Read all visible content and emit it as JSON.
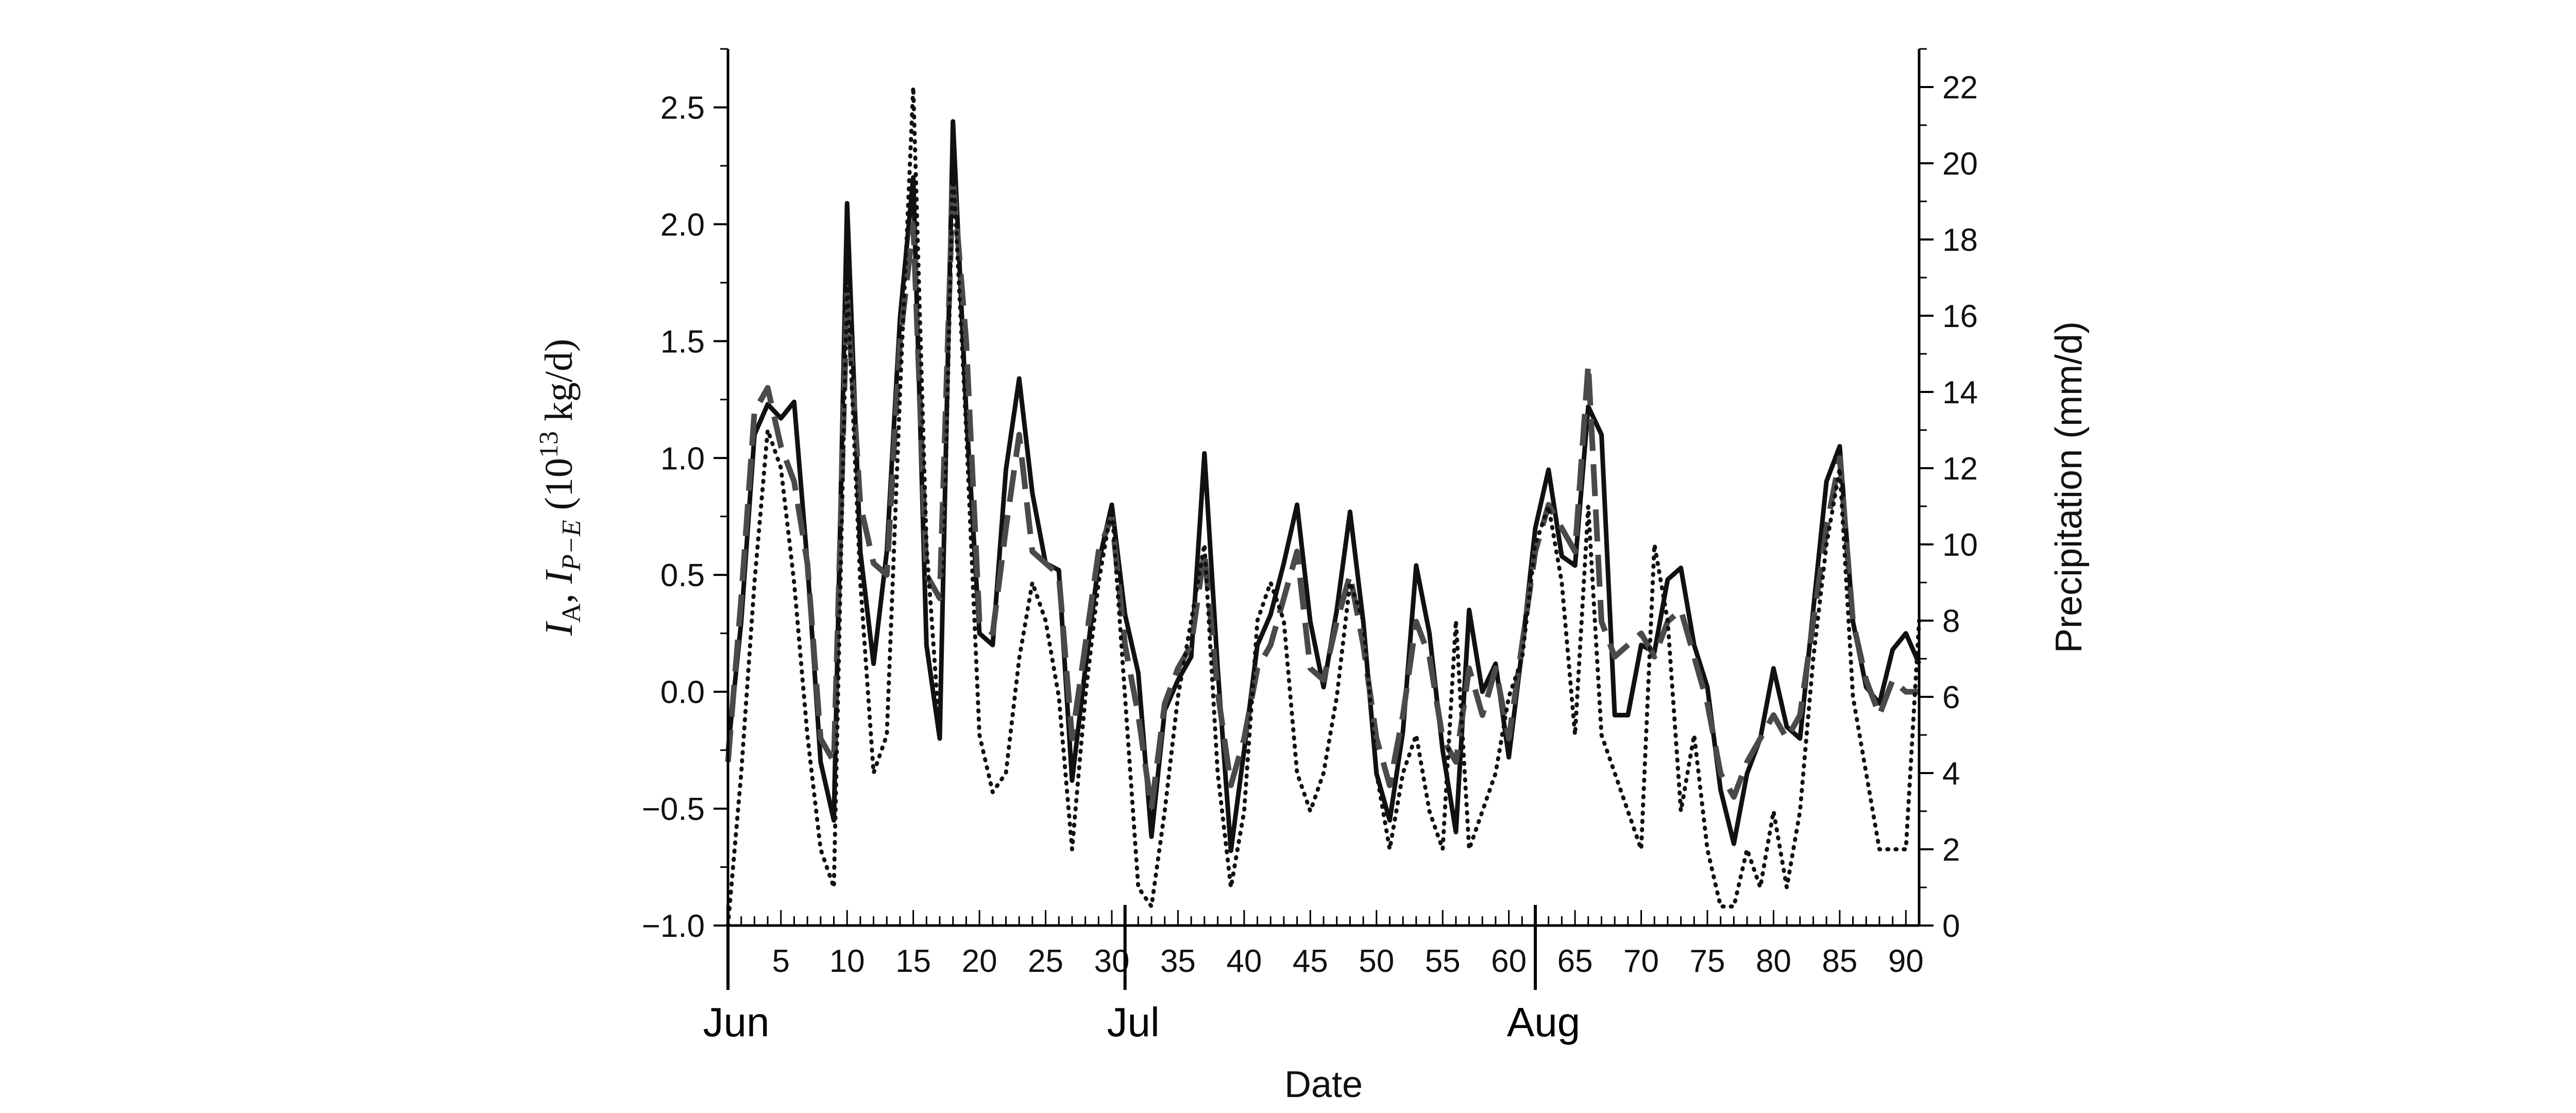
{
  "chart_data": {
    "type": "line",
    "xlabel": "Date",
    "ylabel_left": "I_A, I_{P-E} (10^13 kg/d)",
    "ylabel_right": "Precipitation (mm/d)",
    "xlim": [
      1,
      91
    ],
    "ylim_left": [
      -1.0,
      2.75
    ],
    "ylim_right": [
      0,
      23
    ],
    "x_ticks": [
      5,
      10,
      15,
      20,
      25,
      30,
      35,
      40,
      45,
      50,
      55,
      60,
      65,
      70,
      75,
      80,
      85,
      90
    ],
    "x_tick_labels": [
      "5",
      "10",
      "15",
      "20",
      "25",
      "30",
      "35",
      "40",
      "45",
      "50",
      "55",
      "60",
      "65",
      "70",
      "75",
      "80",
      "85",
      "90"
    ],
    "y_left_ticks": [
      -1.0,
      -0.5,
      0.0,
      0.5,
      1.0,
      1.5,
      2.0,
      2.5
    ],
    "y_left_tick_labels": [
      "−1.0",
      "−0.5",
      "0.0",
      "0.5",
      "1.0",
      "1.5",
      "2.0",
      "2.5"
    ],
    "y_right_ticks": [
      0,
      2,
      4,
      6,
      8,
      10,
      12,
      14,
      16,
      18,
      20,
      22
    ],
    "y_right_tick_labels": [
      "0",
      "2",
      "4",
      "6",
      "8",
      "10",
      "12",
      "14",
      "16",
      "18",
      "20",
      "22"
    ],
    "months": [
      {
        "label": "Jun",
        "x": 1
      },
      {
        "label": "Jul",
        "x": 31
      },
      {
        "label": "Aug",
        "x": 62
      }
    ],
    "grid": false,
    "legend": "none",
    "series": [
      {
        "style": "solid",
        "axis": "left",
        "x": [
          1,
          2,
          3,
          4,
          5,
          6,
          7,
          8,
          9,
          10,
          11,
          12,
          13,
          14,
          15,
          16,
          17,
          18,
          19,
          20,
          21,
          22,
          23,
          24,
          25,
          26,
          27,
          28,
          29,
          30,
          31,
          32,
          33,
          34,
          35,
          36,
          37,
          38,
          39,
          40,
          41,
          42,
          43,
          44,
          45,
          46,
          47,
          48,
          49,
          50,
          51,
          52,
          53,
          54,
          55,
          56,
          57,
          58,
          59,
          60,
          61,
          62,
          63,
          64,
          65,
          66,
          67,
          68,
          69,
          70,
          71,
          72,
          73,
          74,
          75,
          76,
          77,
          78,
          79,
          80,
          81,
          82,
          83,
          84,
          85,
          86,
          87,
          88,
          89,
          90,
          91
        ],
        "y": [
          -0.25,
          0.3,
          1.1,
          1.23,
          1.17,
          1.24,
          0.55,
          -0.3,
          -0.55,
          2.09,
          0.6,
          0.12,
          0.6,
          1.6,
          2.2,
          0.2,
          -0.2,
          2.44,
          1.2,
          0.25,
          0.2,
          0.95,
          1.34,
          0.85,
          0.55,
          0.52,
          -0.38,
          0.1,
          0.55,
          0.8,
          0.33,
          0.08,
          -0.62,
          -0.08,
          0.05,
          0.15,
          1.02,
          0.1,
          -0.68,
          -0.25,
          0.2,
          0.33,
          0.55,
          0.8,
          0.3,
          0.02,
          0.35,
          0.77,
          0.3,
          -0.35,
          -0.55,
          -0.17,
          0.54,
          0.25,
          -0.25,
          -0.6,
          0.35,
          0.0,
          0.12,
          -0.28,
          0.18,
          0.7,
          0.95,
          0.58,
          0.54,
          1.22,
          1.1,
          -0.1,
          -0.1,
          0.2,
          0.17,
          0.48,
          0.53,
          0.2,
          0.02,
          -0.42,
          -0.65,
          -0.35,
          -0.2,
          0.1,
          -0.15,
          -0.2,
          0.35,
          0.9,
          1.05,
          0.3,
          0.02,
          -0.05,
          0.18,
          0.25,
          0.12
        ]
      },
      {
        "style": "dashed",
        "axis": "left",
        "x": [
          1,
          2,
          3,
          4,
          5,
          6,
          7,
          8,
          9,
          10,
          11,
          12,
          13,
          14,
          15,
          16,
          17,
          18,
          19,
          20,
          21,
          22,
          23,
          24,
          25,
          26,
          27,
          28,
          29,
          30,
          31,
          32,
          33,
          34,
          35,
          36,
          37,
          38,
          39,
          40,
          41,
          42,
          43,
          44,
          45,
          46,
          47,
          48,
          49,
          50,
          51,
          52,
          53,
          54,
          55,
          56,
          57,
          58,
          59,
          60,
          61,
          62,
          63,
          64,
          65,
          66,
          67,
          68,
          69,
          70,
          71,
          72,
          73,
          74,
          75,
          76,
          77,
          78,
          79,
          80,
          81,
          82,
          83,
          84,
          85,
          86,
          87,
          88,
          89,
          90,
          91
        ],
        "y": [
          -0.3,
          0.4,
          1.2,
          1.3,
          1.05,
          0.9,
          0.55,
          -0.2,
          -0.3,
          1.7,
          0.8,
          0.55,
          0.5,
          1.5,
          2.0,
          0.5,
          0.4,
          2.2,
          1.5,
          0.3,
          0.25,
          0.7,
          1.1,
          0.6,
          0.55,
          0.5,
          -0.2,
          0.2,
          0.6,
          0.75,
          0.2,
          -0.1,
          -0.5,
          -0.05,
          0.1,
          0.2,
          0.6,
          0.0,
          -0.4,
          -0.2,
          0.1,
          0.2,
          0.4,
          0.6,
          0.1,
          0.05,
          0.3,
          0.5,
          0.2,
          -0.2,
          -0.4,
          -0.1,
          0.3,
          0.15,
          -0.2,
          -0.3,
          0.1,
          -0.1,
          0.1,
          -0.2,
          0.2,
          0.6,
          0.8,
          0.7,
          0.6,
          1.4,
          0.3,
          0.15,
          0.2,
          0.25,
          0.15,
          0.3,
          0.35,
          0.15,
          -0.05,
          -0.35,
          -0.45,
          -0.3,
          -0.2,
          -0.1,
          -0.2,
          -0.1,
          0.3,
          0.7,
          1.0,
          0.3,
          0.05,
          -0.1,
          0.05,
          0.0,
          0.0
        ]
      },
      {
        "style": "dotted",
        "axis": "right",
        "x": [
          1,
          2,
          3,
          4,
          5,
          6,
          7,
          8,
          9,
          10,
          11,
          12,
          13,
          14,
          15,
          16,
          17,
          18,
          19,
          20,
          21,
          22,
          23,
          24,
          25,
          26,
          27,
          28,
          29,
          30,
          31,
          32,
          33,
          34,
          35,
          36,
          37,
          38,
          39,
          40,
          41,
          42,
          43,
          44,
          45,
          46,
          47,
          48,
          49,
          50,
          51,
          52,
          53,
          54,
          55,
          56,
          57,
          58,
          59,
          60,
          61,
          62,
          63,
          64,
          65,
          66,
          67,
          68,
          69,
          70,
          71,
          72,
          73,
          74,
          75,
          76,
          77,
          78,
          79,
          80,
          81,
          82,
          83,
          84,
          85,
          86,
          87,
          88,
          89,
          90,
          91
        ],
        "y": [
          0,
          4,
          9,
          13,
          12,
          9,
          5,
          2,
          1,
          17,
          9,
          4,
          5,
          14,
          22,
          10,
          5,
          20,
          13,
          5,
          3.5,
          4,
          7,
          9,
          8,
          6,
          2,
          6,
          9,
          11,
          6,
          1,
          0.5,
          3,
          6,
          8,
          10,
          4,
          1,
          3,
          8,
          9,
          8,
          4,
          3,
          4,
          6,
          9,
          8,
          4,
          2,
          4,
          5,
          3,
          2,
          8,
          2,
          3,
          4,
          6,
          7,
          10,
          11,
          9,
          5,
          11,
          5,
          4,
          3,
          2,
          10,
          8,
          3,
          5,
          2,
          0.5,
          0.5,
          2,
          1,
          3,
          1,
          3,
          7,
          10,
          12,
          6,
          4,
          2,
          2,
          2,
          8
        ]
      }
    ]
  }
}
